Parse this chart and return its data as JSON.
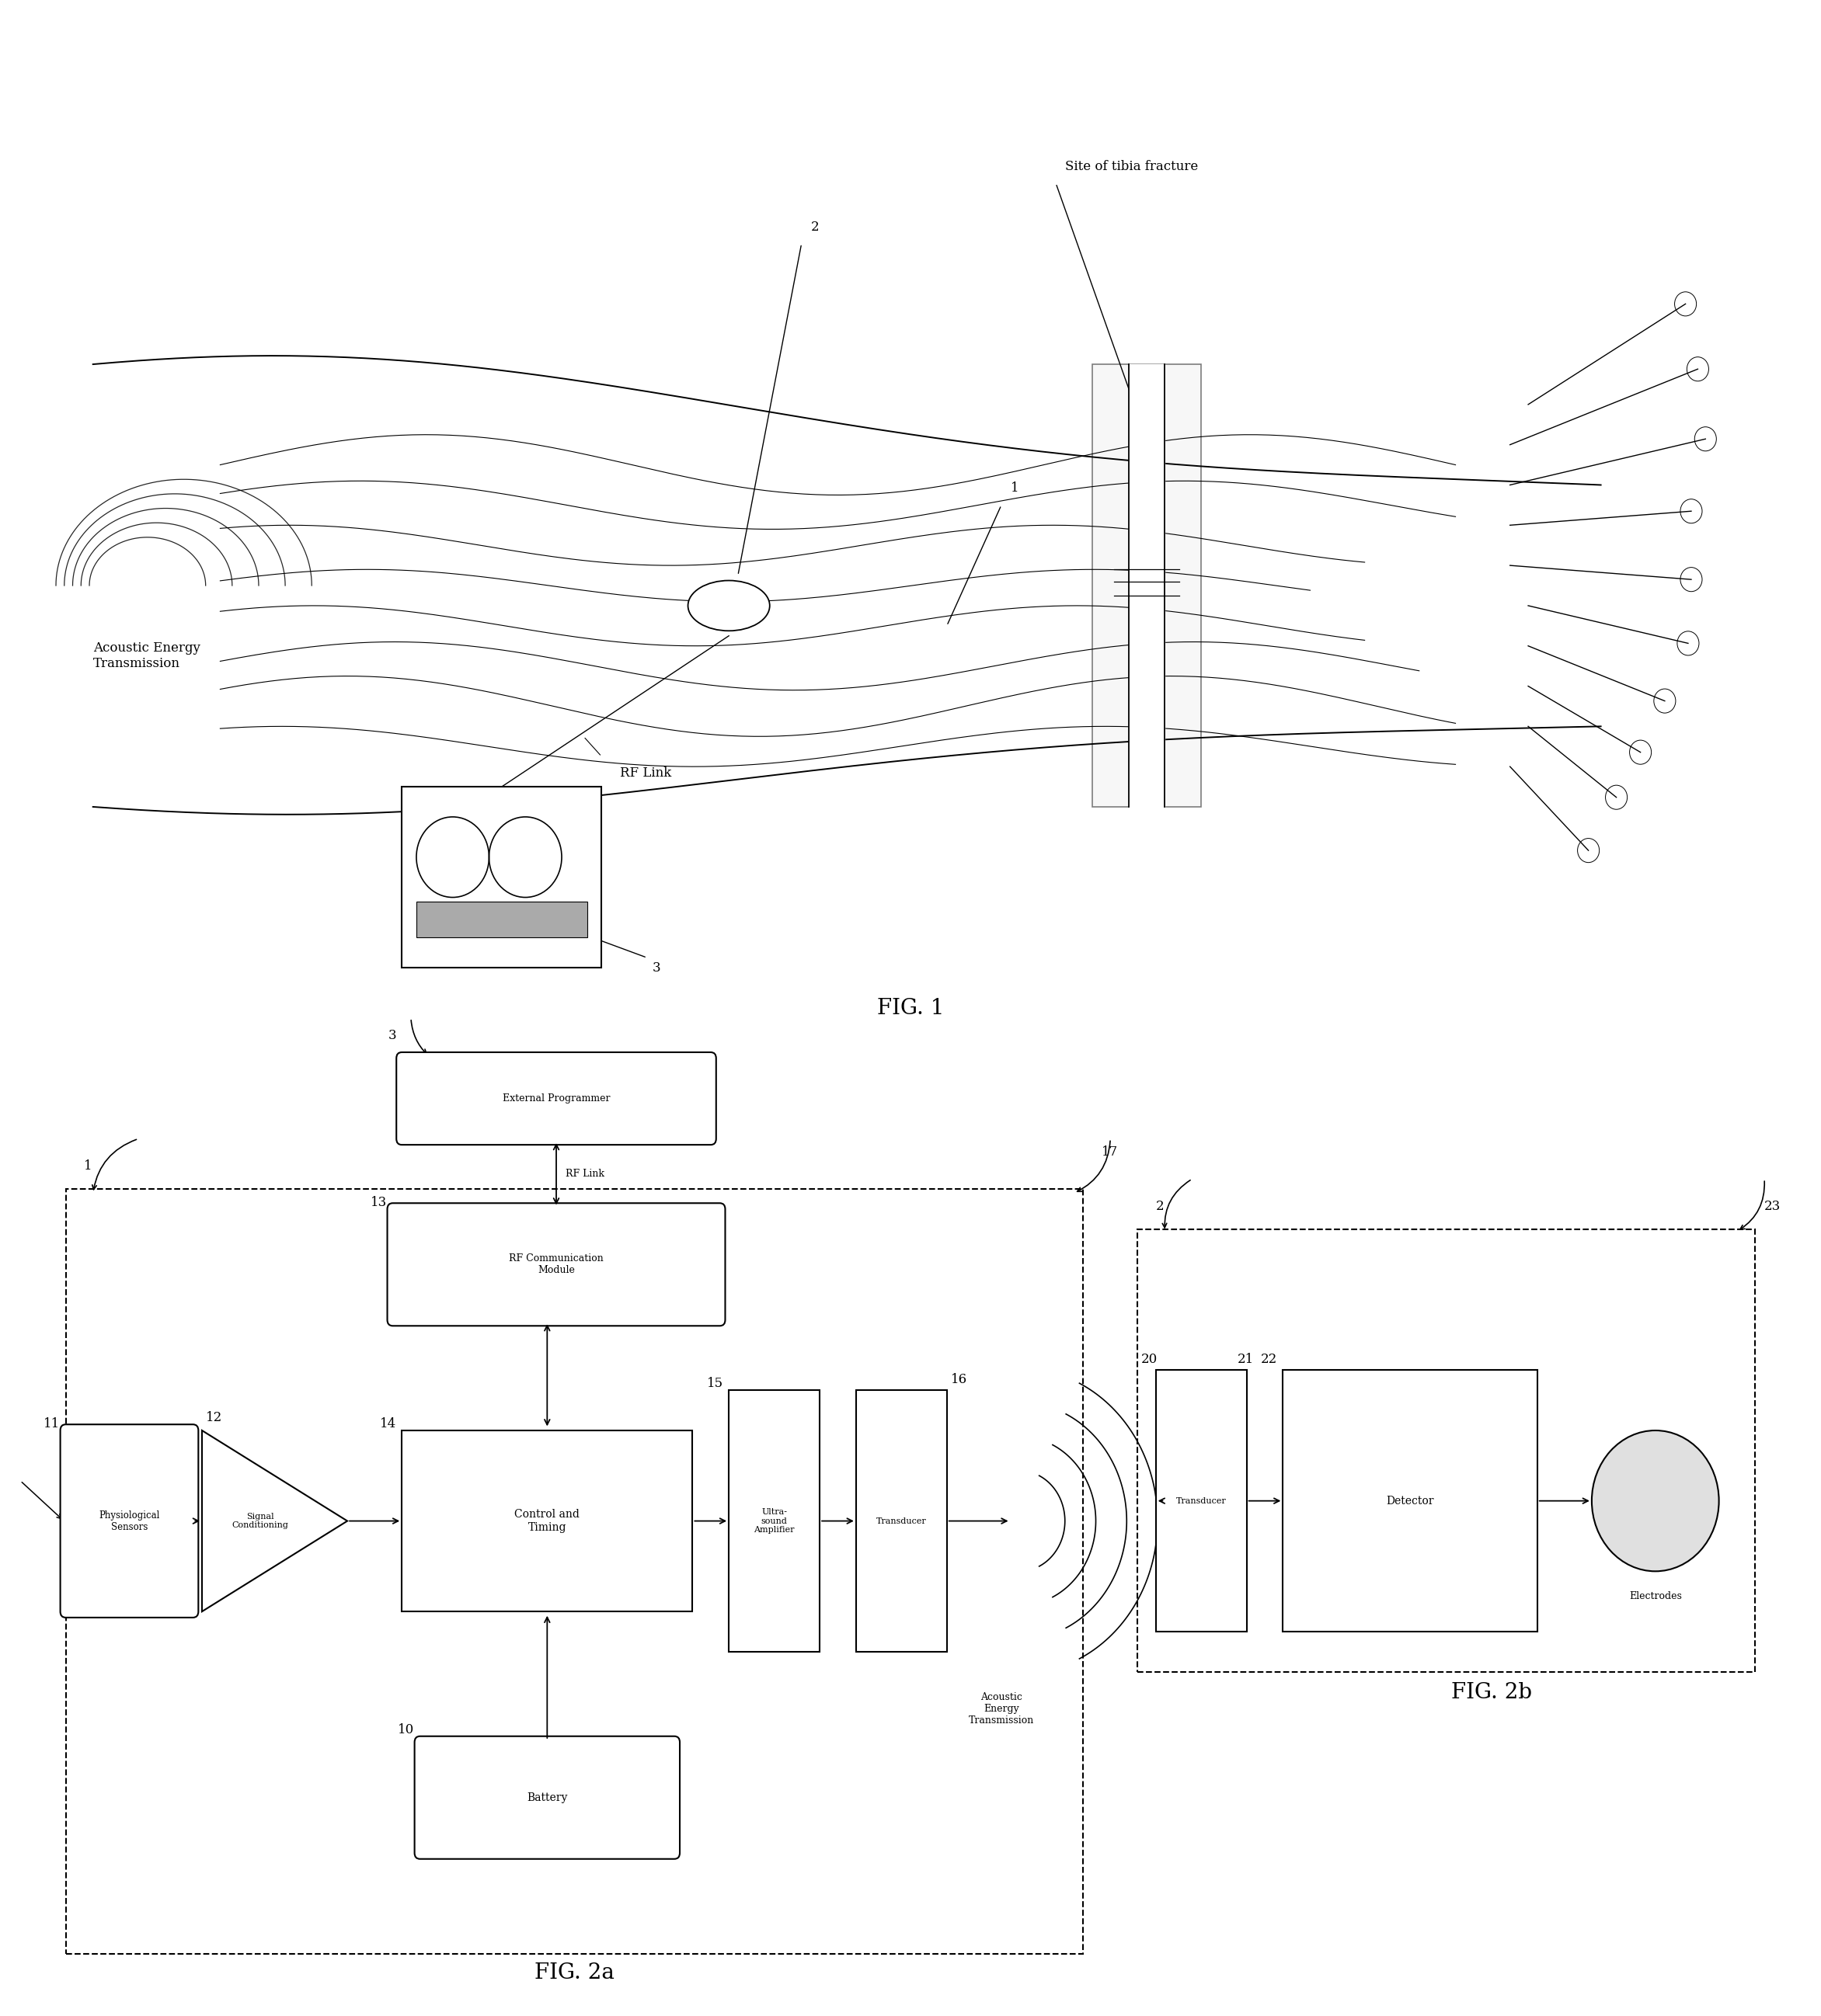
{
  "fig_width": 23.44,
  "fig_height": 25.96,
  "bg_color": "#ffffff",
  "lc": "#000000",
  "fig1_label": "FIG. 1",
  "fig2a_label": "FIG. 2a",
  "fig2b_label": "FIG. 2b",
  "site_label": "Site of tibia fracture",
  "acoustic_label": "Acoustic Energy\nTransmission",
  "rf_link_label": "RF Link",
  "label_1": "1",
  "label_2": "2",
  "label_3": "3",
  "label_10": "10",
  "label_11": "11",
  "label_12": "12",
  "label_13": "13",
  "label_14": "14",
  "label_15": "15",
  "label_16": "16",
  "label_17": "17",
  "label_20": "20",
  "label_21": "21",
  "label_22": "22",
  "label_23": "23",
  "box_physio": "Physiological\nSensors",
  "box_signal": "Signal\nConditioning",
  "box_control": "Control and\nTiming",
  "box_amp": "Ultra-\nsound\nAmplifier",
  "box_trans16": "Transducer",
  "box_battery": "Battery",
  "box_rfcomm": "RF Communication\nModule",
  "box_external": "External Programmer",
  "box_trans21": "Transducer",
  "box_detector": "Detector",
  "electrodes_label": "Electrodes",
  "acoustic_energy_label": "Acoustic\nEnergy\nTransmission"
}
